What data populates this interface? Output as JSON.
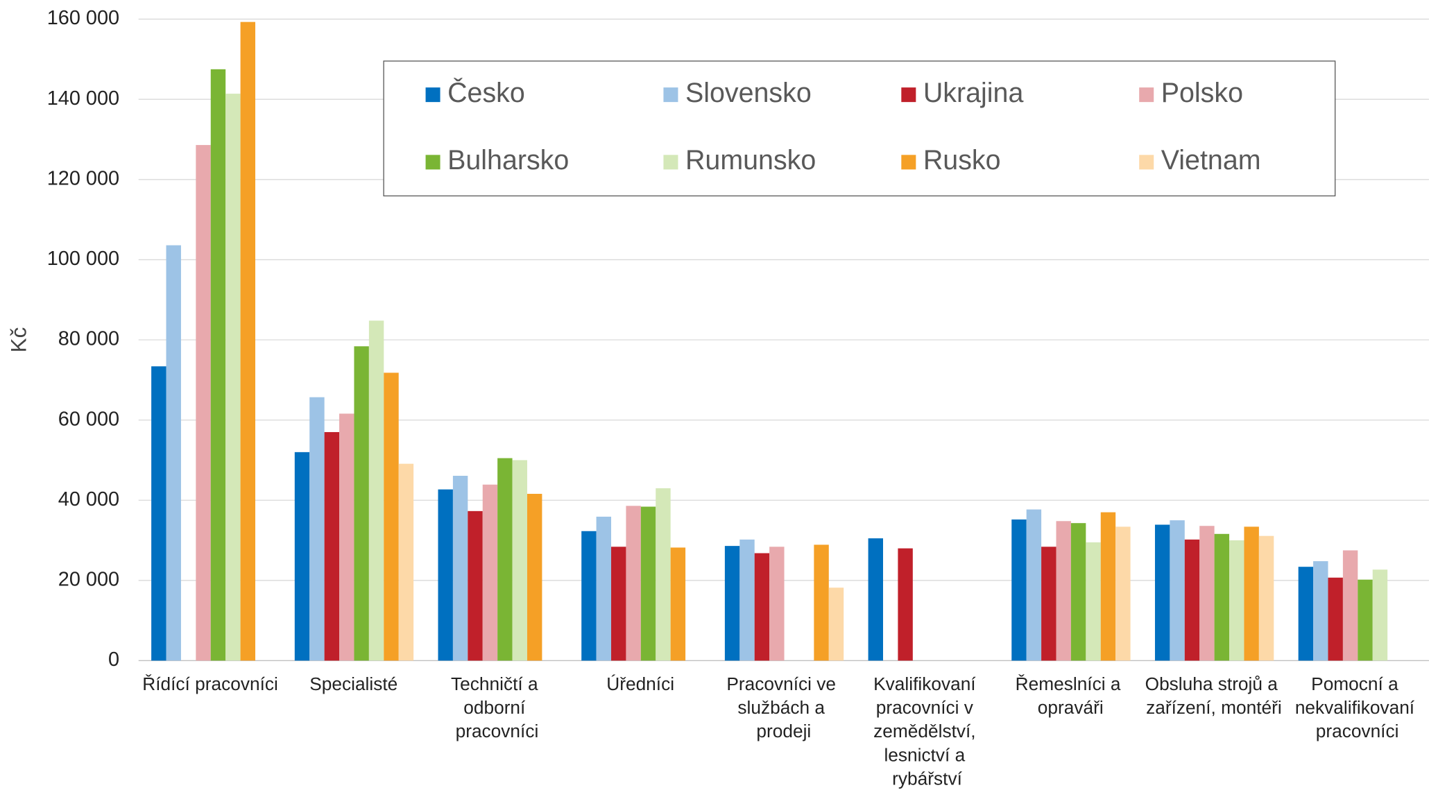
{
  "chart_data": {
    "type": "bar",
    "y_label": "Kč",
    "categories": [
      "Řídící pracovníci",
      "Specialisté",
      "Techničtí a odborní pracovníci",
      "Úředníci",
      "Pracovníci ve službách a prodeji",
      "Kvalifikovaní pracovníci v zemědělství, lesnictví a rybářství",
      "Řemeslníci a opraváři",
      "Obsluha strojů a zařízení, montéři",
      "Pomocní a nekvalifikovaní pracovníci"
    ],
    "series": [
      {
        "name": "Česko",
        "color": "#0070c0",
        "values": [
          73400,
          52000,
          42700,
          32300,
          28600,
          30500,
          35200,
          33900,
          23400
        ]
      },
      {
        "name": "Slovensko",
        "color": "#9dc3e6",
        "values": [
          103600,
          65700,
          46100,
          35900,
          30200,
          null,
          37700,
          35000,
          24800
        ]
      },
      {
        "name": "Ukrajina",
        "color": "#c0202a",
        "values": [
          null,
          57000,
          37300,
          28400,
          26800,
          28000,
          28400,
          30200,
          20700
        ]
      },
      {
        "name": "Polsko",
        "color": "#e8a9ad",
        "values": [
          128600,
          61600,
          43900,
          38600,
          28400,
          null,
          34800,
          33600,
          27500
        ]
      },
      {
        "name": "Bulharsko",
        "color": "#7ab534",
        "values": [
          147500,
          78400,
          50500,
          38400,
          null,
          null,
          34300,
          31600,
          20200
        ]
      },
      {
        "name": "Rumunsko",
        "color": "#d4e8b8",
        "values": [
          141400,
          84800,
          50000,
          43000,
          null,
          null,
          29500,
          30000,
          22700
        ]
      },
      {
        "name": "Rusko",
        "color": "#f5a026",
        "values": [
          159300,
          71800,
          41600,
          28200,
          28900,
          null,
          37000,
          33400,
          null
        ]
      },
      {
        "name": "Vietnam",
        "color": "#fdd9a8",
        "values": [
          null,
          49100,
          null,
          null,
          18200,
          null,
          33400,
          31100,
          null
        ]
      }
    ],
    "ylim": [
      0,
      160000
    ],
    "yticks": [
      0,
      {
        "value": 20000,
        "label": "20 000"
      },
      {
        "value": 40000,
        "label": "40 000"
      },
      {
        "value": 60000,
        "label": "60 000"
      },
      {
        "value": 80000,
        "label": "80 000"
      },
      {
        "value": 100000,
        "label": "100 000"
      },
      {
        "value": 120000,
        "label": "120 000"
      },
      {
        "value": 140000,
        "label": "140 000"
      },
      {
        "value": 160000,
        "label": "160 000"
      }
    ],
    "grid": true,
    "legend": "top"
  }
}
